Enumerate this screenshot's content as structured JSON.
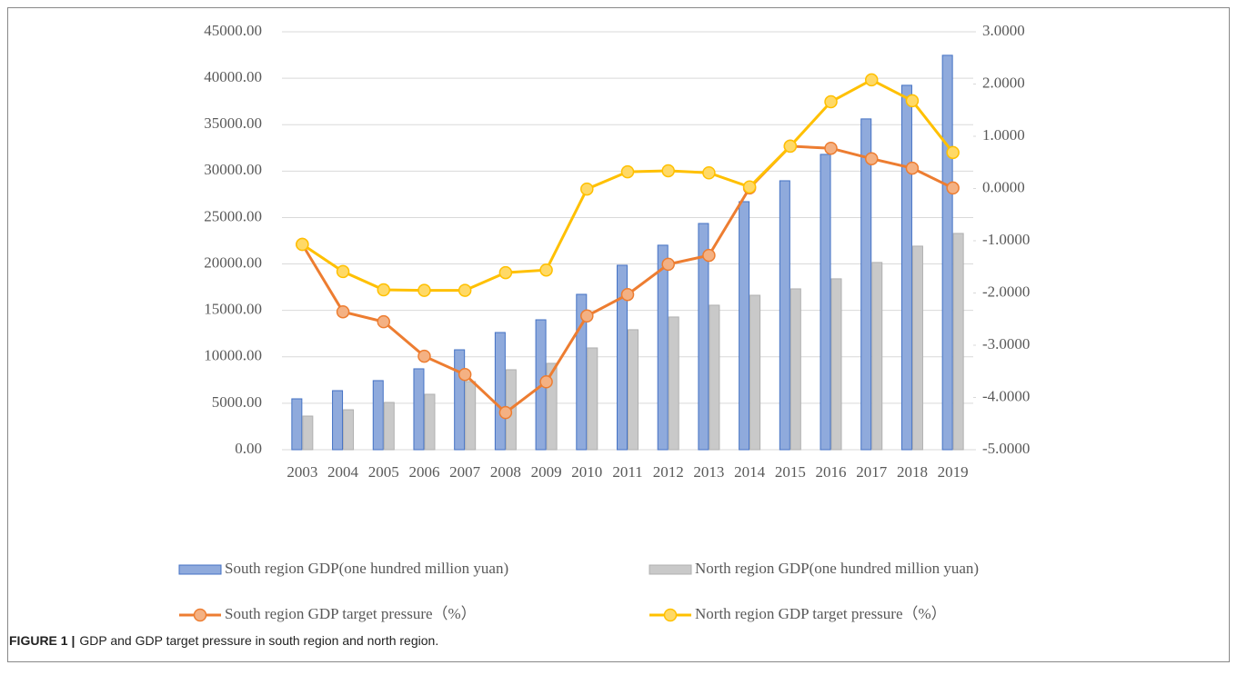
{
  "chart_data": {
    "type": "combo",
    "categories": [
      "2003",
      "2004",
      "2005",
      "2006",
      "2007",
      "2008",
      "2009",
      "2010",
      "2011",
      "2012",
      "2013",
      "2014",
      "2015",
      "2016",
      "2017",
      "2018",
      "2019"
    ],
    "series": [
      {
        "name": "South region GDP(one hundred million yuan)",
        "type": "bar",
        "color": "#8faadc",
        "stroke": "#4472c4",
        "values": [
          5480,
          6360,
          7440,
          8710,
          10760,
          12620,
          13990,
          16730,
          19860,
          22020,
          24360,
          26710,
          28960,
          31800,
          35620,
          39240,
          42470
        ]
      },
      {
        "name": "North region GDP(one hundred million yuan)",
        "type": "bar",
        "color": "#c9c9c9",
        "stroke": "#b0b0b0",
        "values": [
          3620,
          4300,
          5090,
          5970,
          7340,
          8610,
          9300,
          10960,
          12920,
          14290,
          15560,
          16630,
          17320,
          18400,
          20160,
          21920,
          23290
        ]
      },
      {
        "name": "South region GDP target pressure（%）",
        "type": "line",
        "axis": "y2",
        "color": "#ed7d31",
        "marker_color": "#f4b183",
        "values": [
          -1.07,
          -2.36,
          -2.55,
          -3.21,
          -3.56,
          -4.29,
          -3.7,
          -2.44,
          -2.03,
          -1.45,
          -1.28,
          0.01,
          0.81,
          0.77,
          0.57,
          0.39,
          0.01
        ]
      },
      {
        "name": "North region GDP target pressure（%）",
        "type": "line",
        "axis": "y2",
        "color": "#ffc000",
        "marker_color": "#ffd966",
        "values": [
          -1.07,
          -1.59,
          -1.94,
          -1.95,
          -1.95,
          -1.61,
          -1.56,
          -0.01,
          0.32,
          0.34,
          0.3,
          0.03,
          0.81,
          1.66,
          2.08,
          1.68,
          0.69
        ]
      }
    ],
    "ylim": [
      0,
      45000
    ],
    "yticks": [
      {
        "value": 0,
        "label": "0.00"
      },
      {
        "value": 5000,
        "label": "5000.00"
      },
      {
        "value": 10000,
        "label": "10000.00"
      },
      {
        "value": 15000,
        "label": "15000.00"
      },
      {
        "value": 20000,
        "label": "20000.00"
      },
      {
        "value": 25000,
        "label": "25000.00"
      },
      {
        "value": 30000,
        "label": "30000.00"
      },
      {
        "value": 35000,
        "label": "35000.00"
      },
      {
        "value": 40000,
        "label": "40000.00"
      },
      {
        "value": 45000,
        "label": "45000.00"
      }
    ],
    "y2lim": [
      -5,
      3
    ],
    "y2ticks": [
      {
        "value": -5,
        "label": "-5.0000"
      },
      {
        "value": -4,
        "label": "-4.0000"
      },
      {
        "value": -3,
        "label": "-3.0000"
      },
      {
        "value": -2,
        "label": "-2.0000"
      },
      {
        "value": -1,
        "label": "-1.0000"
      },
      {
        "value": 0,
        "label": "0.0000"
      },
      {
        "value": 1,
        "label": "1.0000"
      },
      {
        "value": 2,
        "label": "2.0000"
      },
      {
        "value": 3,
        "label": "3.0000"
      }
    ],
    "grid": true,
    "legend": "bottom"
  },
  "caption": {
    "label": "FIGURE 1 |",
    "text": "GDP and GDP target pressure in south region and north region."
  }
}
